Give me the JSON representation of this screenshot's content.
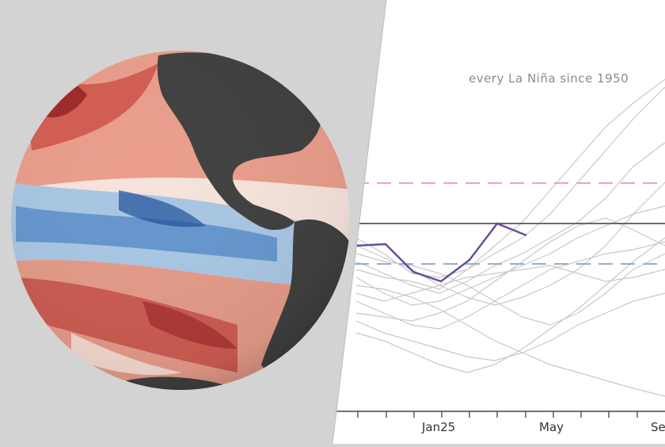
{
  "chart_data": {
    "type": "line",
    "title": "",
    "annotation": "every La Niña since 1950",
    "x_tick_labels": [
      "Jan25",
      "May",
      "Se"
    ],
    "reference_lines": [
      {
        "style": "dashed",
        "color": "#f2a6a6"
      },
      {
        "style": "solid",
        "color": "#555555"
      },
      {
        "style": "dashed",
        "color": "#8fb0cf"
      }
    ],
    "highlight_series_color": "#6a4c9c",
    "background_series_color": "#c8c8c8",
    "grid": false
  },
  "colors": {
    "left_background": "#d3d3d3",
    "land": "#404040",
    "warm": "#c8403a",
    "cool": "#4f86c6"
  },
  "icons": [
    "earth-globe-image"
  ]
}
